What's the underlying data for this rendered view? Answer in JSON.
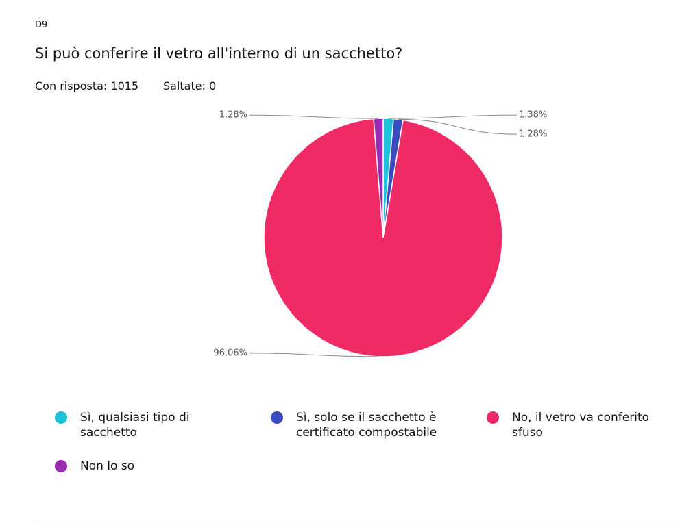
{
  "chart_data": {
    "type": "pie",
    "question_id": "D9",
    "title": "Si può conferire il vetro all'interno di un sacchetto?",
    "answered": "Con risposta: 1015",
    "skipped": "Saltate: 0",
    "categories": [
      "Sì, qualsiasi tipo di sacchetto",
      "Sì, solo se il sacchetto è certificato compostabile",
      "No, il vetro va conferito sfuso",
      "Non lo so"
    ],
    "values": [
      1.38,
      1.28,
      96.06,
      1.28
    ],
    "value_labels": [
      "1.38%",
      "1.28%",
      "96.06%",
      "1.28%"
    ],
    "colors": [
      "#1cc3da",
      "#3a4cbf",
      "#f02a65",
      "#9a2bb1"
    ]
  }
}
